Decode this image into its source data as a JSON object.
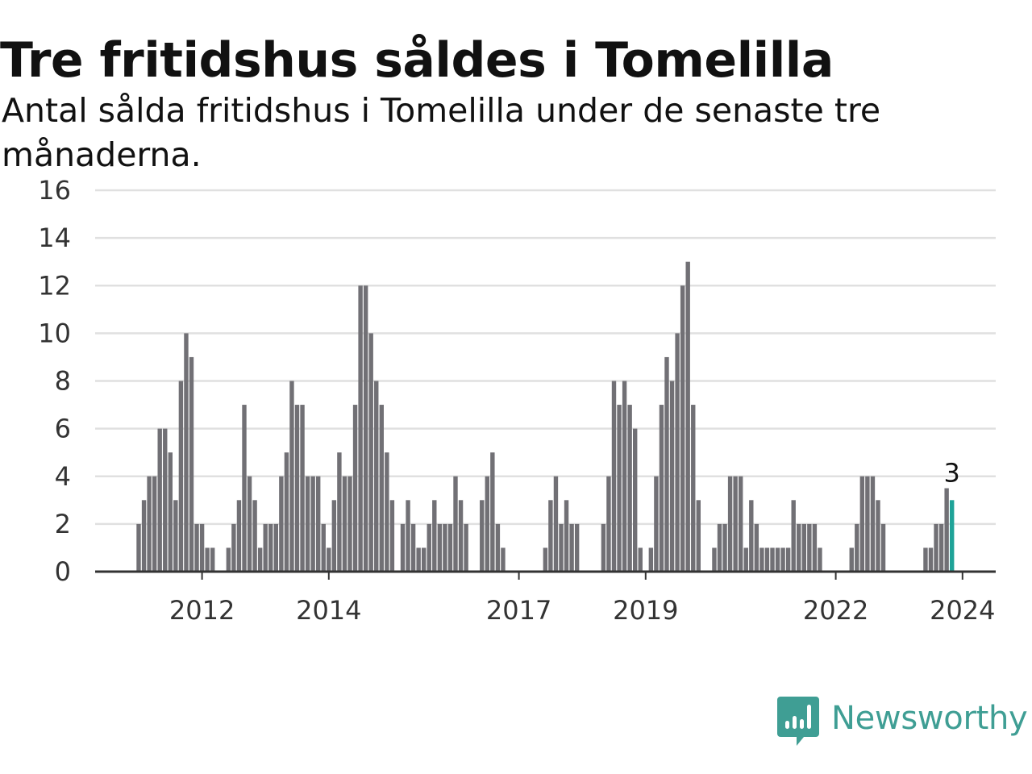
{
  "chart_data": {
    "type": "bar",
    "title": "Tre fritidshus såldes i Tomelilla",
    "subtitle": "Antal sålda fritidshus i Tomelilla under de senaste tre månaderna.",
    "xlabel": "",
    "ylabel": "",
    "ylim": [
      0,
      16
    ],
    "y_ticks": [
      0,
      2,
      4,
      6,
      8,
      10,
      12,
      14,
      16
    ],
    "x_tick_labels": [
      {
        "label": "2012",
        "month_index": 12
      },
      {
        "label": "2014",
        "month_index": 36
      },
      {
        "label": "2017",
        "month_index": 72
      },
      {
        "label": "2019",
        "month_index": 96
      },
      {
        "label": "2022",
        "month_index": 132
      },
      {
        "label": "2024",
        "month_index": 156
      }
    ],
    "grid": true,
    "series": [
      {
        "values": [
          2,
          3,
          4,
          4,
          6,
          6,
          5,
          3,
          8,
          10,
          9,
          2,
          2,
          1,
          1,
          0,
          0,
          1,
          2,
          3,
          7,
          4,
          3,
          1,
          2,
          2,
          2,
          4,
          5,
          8,
          7,
          7,
          4,
          4,
          4,
          2,
          1,
          3,
          5,
          4,
          4,
          7,
          12,
          12,
          10,
          8,
          7,
          5,
          3,
          0,
          2,
          3,
          2,
          1,
          1,
          2,
          3,
          2,
          2,
          2,
          4,
          3,
          2,
          0,
          0,
          3,
          4,
          5,
          2,
          1,
          0,
          0,
          0,
          0,
          0,
          0,
          0,
          1,
          3,
          4,
          2,
          3,
          2,
          2,
          0,
          0,
          0,
          0,
          2,
          4,
          8,
          7,
          8,
          7,
          6,
          1,
          0,
          1,
          4,
          7,
          9,
          8,
          10,
          12,
          13,
          7,
          3,
          0,
          0,
          1,
          2,
          2,
          4,
          4,
          4,
          1,
          3,
          2,
          1,
          1,
          1,
          1,
          1,
          1,
          3,
          2,
          2,
          2,
          2,
          1,
          0,
          0,
          0,
          0,
          0,
          1,
          2,
          4,
          4,
          4,
          3,
          2,
          0,
          0,
          0,
          0,
          0,
          0,
          0,
          1,
          1,
          2,
          2,
          3.5,
          3
        ]
      }
    ],
    "highlight": {
      "value": 3,
      "label": "3"
    }
  },
  "colors": {
    "bar": "#717075",
    "highlight": "#1fa398",
    "grid": "#e0e0e0",
    "axis": "#333333",
    "brand": "#3f9e94"
  },
  "brand": {
    "name": "Newsworthy",
    "icon": "newsworthy-logo-icon"
  }
}
